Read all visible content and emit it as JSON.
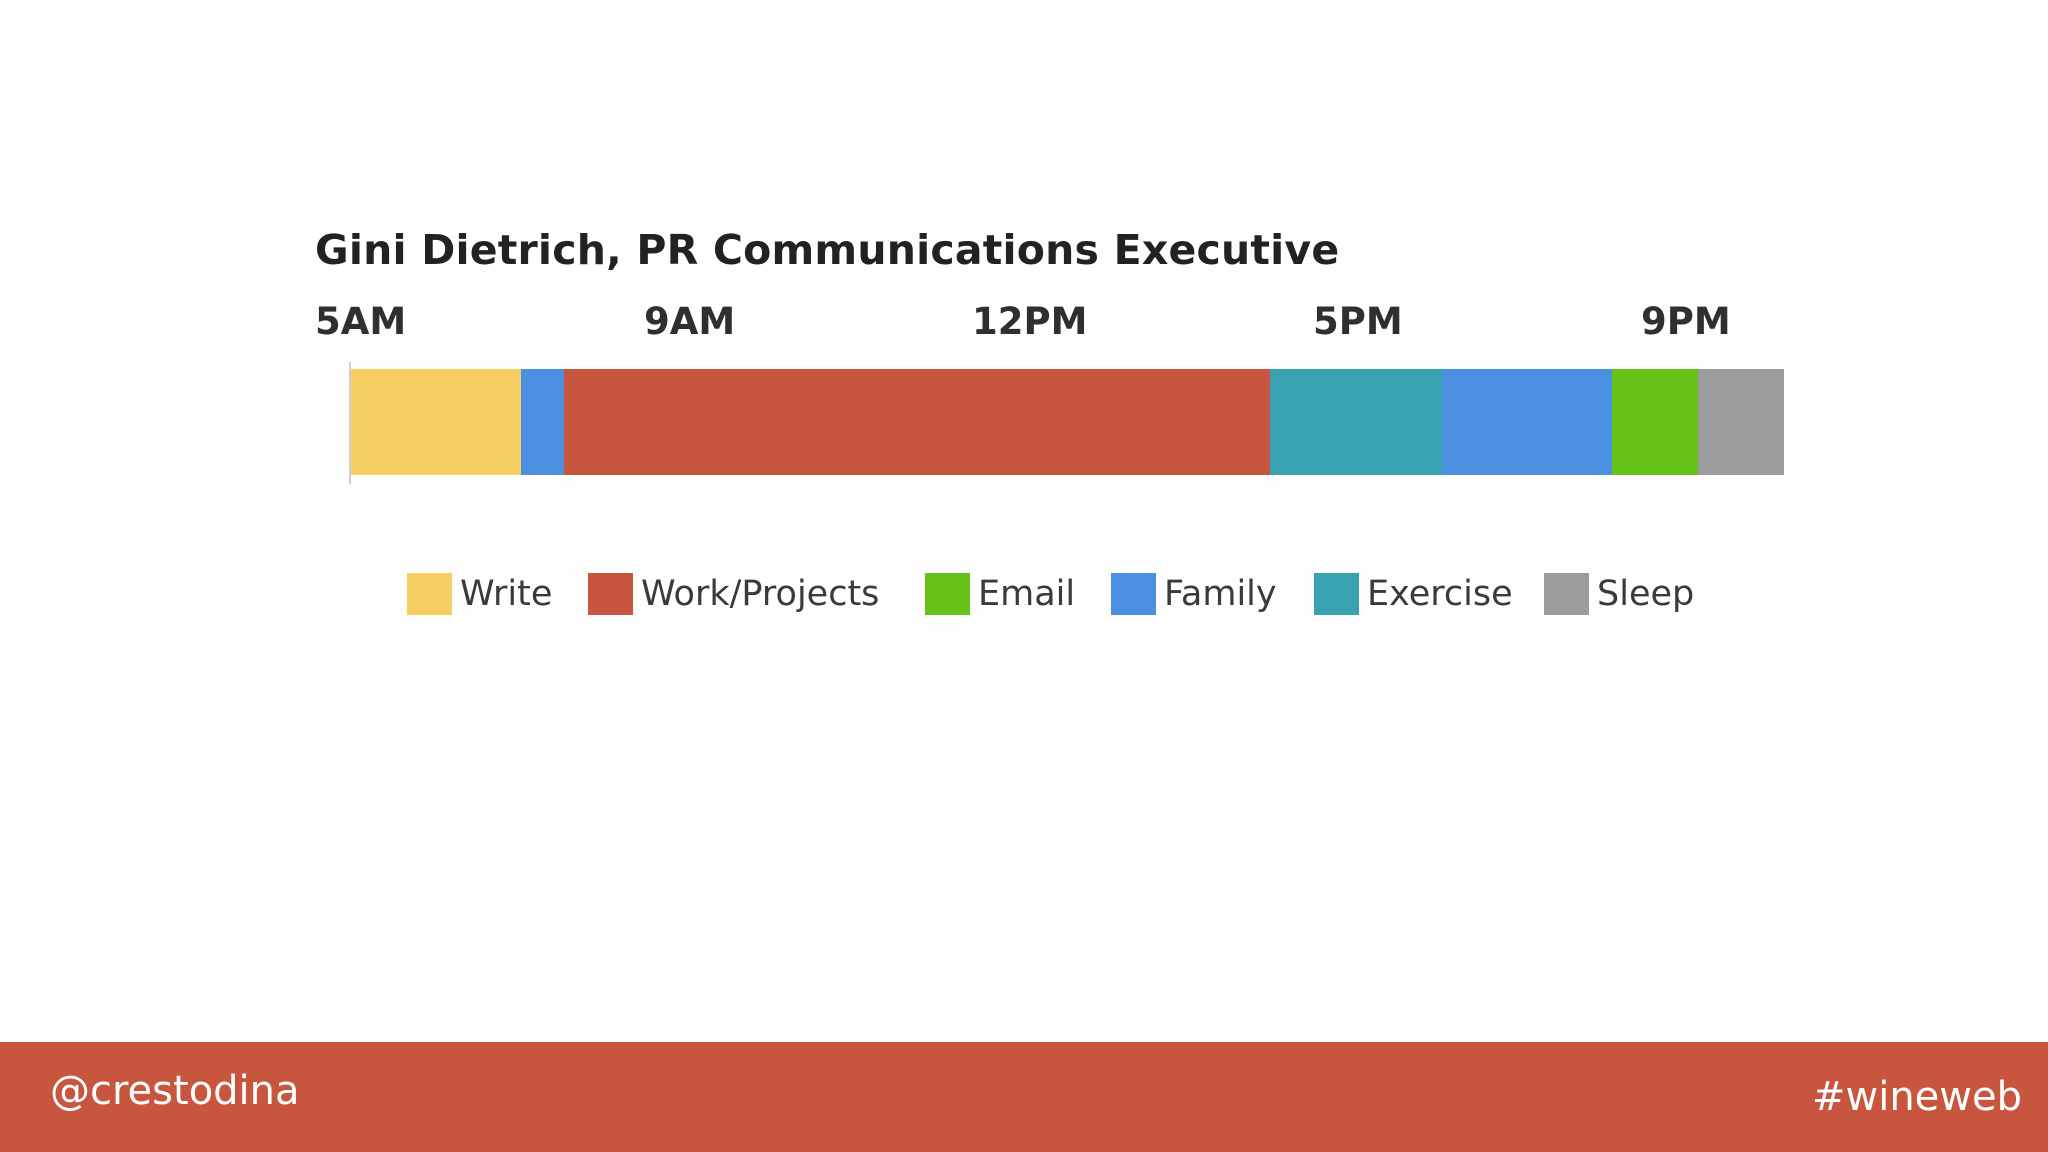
{
  "chart_data": {
    "type": "bar",
    "orientation": "horizontal-stacked",
    "title": "Gini Dietrich, PR Communications Executive",
    "xlabel": "",
    "ylabel": "",
    "tick_labels": [
      "5AM",
      "9AM",
      "12PM",
      "5PM",
      "9PM"
    ],
    "series": [
      {
        "name": "Write",
        "start": 0,
        "duration": 12,
        "color": "#f5cf63"
      },
      {
        "name": "Family",
        "start": 12,
        "duration": 3,
        "color": "#4a8fe0"
      },
      {
        "name": "Work/Projects",
        "start": 15,
        "duration": 49.2,
        "color": "#c8553d"
      },
      {
        "name": "Exercise",
        "start": 64.2,
        "duration": 12,
        "color": "#38a2b0"
      },
      {
        "name": "Family",
        "start": 76.2,
        "duration": 11.8,
        "color": "#4a8fe0"
      },
      {
        "name": "Email",
        "start": 88,
        "duration": 6,
        "color": "#66c119"
      },
      {
        "name": "Sleep",
        "start": 94,
        "duration": 6,
        "color": "#9c9c9c"
      }
    ],
    "xlim": [
      0,
      100
    ],
    "legend": {
      "position": "bottom-center",
      "items": [
        {
          "label": "Write",
          "color": "#f5cf63"
        },
        {
          "label": "Work/Projects",
          "color": "#c8553d"
        },
        {
          "label": "Email",
          "color": "#66c119"
        },
        {
          "label": "Family",
          "color": "#4a8fe0"
        },
        {
          "label": "Exercise",
          "color": "#38a2b0"
        },
        {
          "label": "Sleep",
          "color": "#9c9c9c"
        }
      ]
    }
  },
  "footer": {
    "handle": "@crestodina",
    "hashtag": "#wineweb",
    "color": "#c8553d"
  }
}
